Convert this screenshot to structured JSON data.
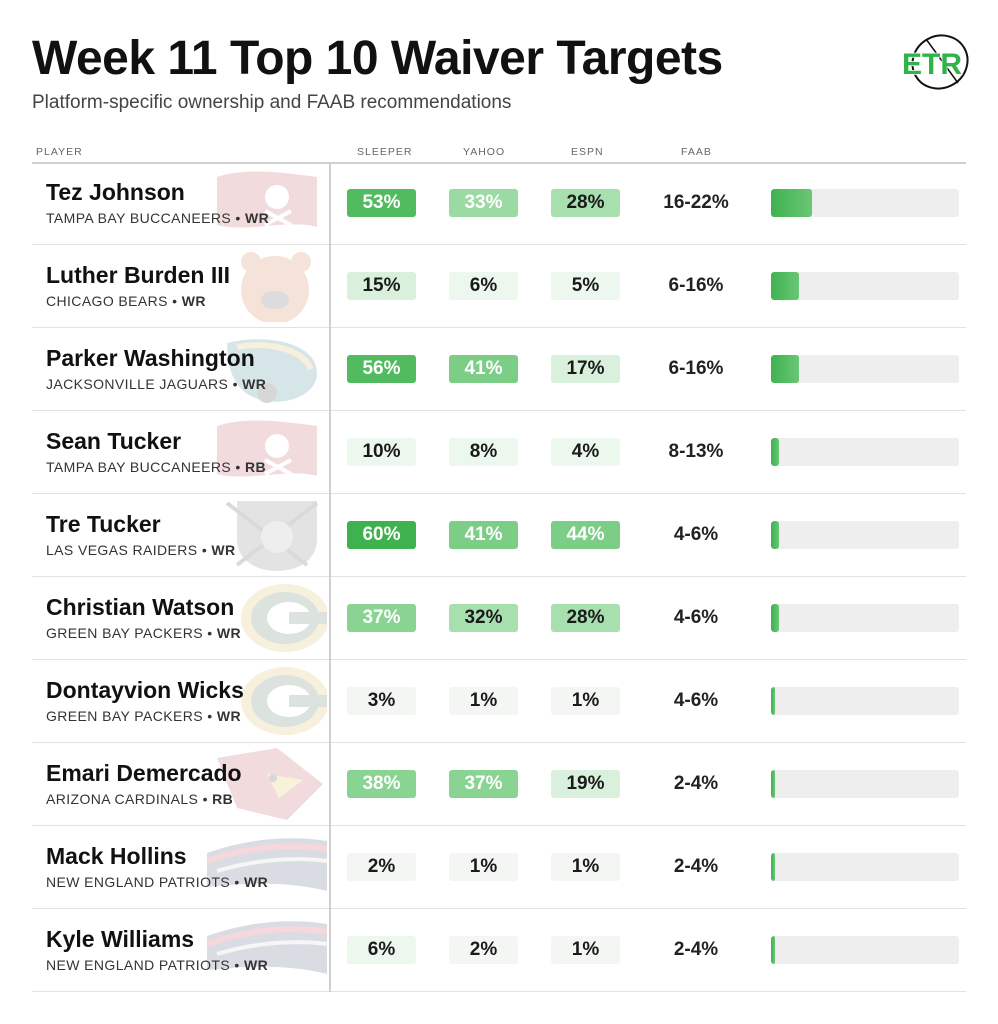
{
  "header": {
    "title": "Week 11 Top 10 Waiver Targets",
    "subtitle": "Platform-specific ownership and FAAB recommendations",
    "logo_text": "ETR"
  },
  "columns": {
    "player": "PLAYER",
    "sleeper": "SLEEPER",
    "yahoo": "YAHOO",
    "espn": "ESPN",
    "faab": "FAAB"
  },
  "colors": {
    "accent": "#3fb250",
    "logo_green": "#2fb34a",
    "bar_track": "#eeeeee"
  },
  "players": [
    {
      "name": "Tez Johnson",
      "team": "TAMPA BAY BUCCANEERS",
      "pos": "WR",
      "team_icon": "buccaneers-flag-icon",
      "sleeper": "53%",
      "yahoo": "33%",
      "espn": "28%",
      "faab": "16-22%",
      "faab_level": 0.22
    },
    {
      "name": "Luther Burden III",
      "team": "CHICAGO BEARS",
      "pos": "WR",
      "team_icon": "bears-head-icon",
      "sleeper": "15%",
      "yahoo": "6%",
      "espn": "5%",
      "faab": "6-16%",
      "faab_level": 0.15
    },
    {
      "name": "Parker Washington",
      "team": "JACKSONVILLE JAGUARS",
      "pos": "WR",
      "team_icon": "jaguars-head-icon",
      "sleeper": "56%",
      "yahoo": "41%",
      "espn": "17%",
      "faab": "6-16%",
      "faab_level": 0.15
    },
    {
      "name": "Sean Tucker",
      "team": "TAMPA BAY BUCCANEERS",
      "pos": "RB",
      "team_icon": "buccaneers-flag-icon",
      "sleeper": "10%",
      "yahoo": "8%",
      "espn": "4%",
      "faab": "8-13%",
      "faab_level": 0.04
    },
    {
      "name": "Tre Tucker",
      "team": "LAS VEGAS RAIDERS",
      "pos": "WR",
      "team_icon": "raiders-shield-icon",
      "sleeper": "60%",
      "yahoo": "41%",
      "espn": "44%",
      "faab": "4-6%",
      "faab_level": 0.04
    },
    {
      "name": "Christian Watson",
      "team": "GREEN BAY PACKERS",
      "pos": "WR",
      "team_icon": "packers-g-icon",
      "sleeper": "37%",
      "yahoo": "32%",
      "espn": "28%",
      "faab": "4-6%",
      "faab_level": 0.04
    },
    {
      "name": "Dontayvion Wicks",
      "team": "GREEN BAY PACKERS",
      "pos": "WR",
      "team_icon": "packers-g-icon",
      "sleeper": "3%",
      "yahoo": "1%",
      "espn": "1%",
      "faab": "4-6%",
      "faab_level": 0.02
    },
    {
      "name": "Emari Demercado",
      "team": "ARIZONA CARDINALS",
      "pos": "RB",
      "team_icon": "cardinals-head-icon",
      "sleeper": "38%",
      "yahoo": "37%",
      "espn": "19%",
      "faab": "2-4%",
      "faab_level": 0.02
    },
    {
      "name": "Mack Hollins",
      "team": "NEW ENGLAND PATRIOTS",
      "pos": "WR",
      "team_icon": "patriots-head-icon",
      "sleeper": "2%",
      "yahoo": "1%",
      "espn": "1%",
      "faab": "2-4%",
      "faab_level": 0.02
    },
    {
      "name": "Kyle Williams",
      "team": "NEW ENGLAND PATRIOTS",
      "pos": "WR",
      "team_icon": "patriots-head-icon",
      "sleeper": "6%",
      "yahoo": "2%",
      "espn": "1%",
      "faab": "2-4%",
      "faab_level": 0.02
    }
  ]
}
